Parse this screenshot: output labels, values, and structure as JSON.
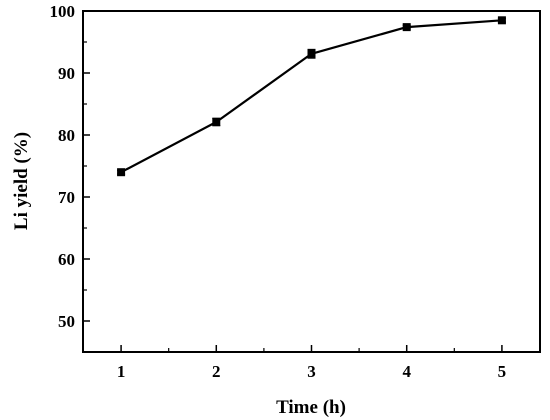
{
  "chart_data": {
    "type": "line",
    "title": "",
    "xlabel": "Time (h)",
    "ylabel": "Li yield (%)",
    "xlim": [
      0.6,
      5.4
    ],
    "ylim": [
      45,
      100
    ],
    "x_ticks": [
      1,
      2,
      3,
      4,
      5
    ],
    "y_ticks": [
      50,
      60,
      70,
      80,
      90,
      100
    ],
    "grid": false,
    "legend": "none",
    "series": [
      {
        "x": [
          1,
          2,
          3,
          4,
          5
        ],
        "y": [
          74.0,
          82.1,
          93.1,
          97.4,
          98.5
        ],
        "error": [
          0.3,
          0.6,
          0.7,
          0.3,
          0.3
        ],
        "marker": "square",
        "color": "#000000"
      }
    ]
  }
}
